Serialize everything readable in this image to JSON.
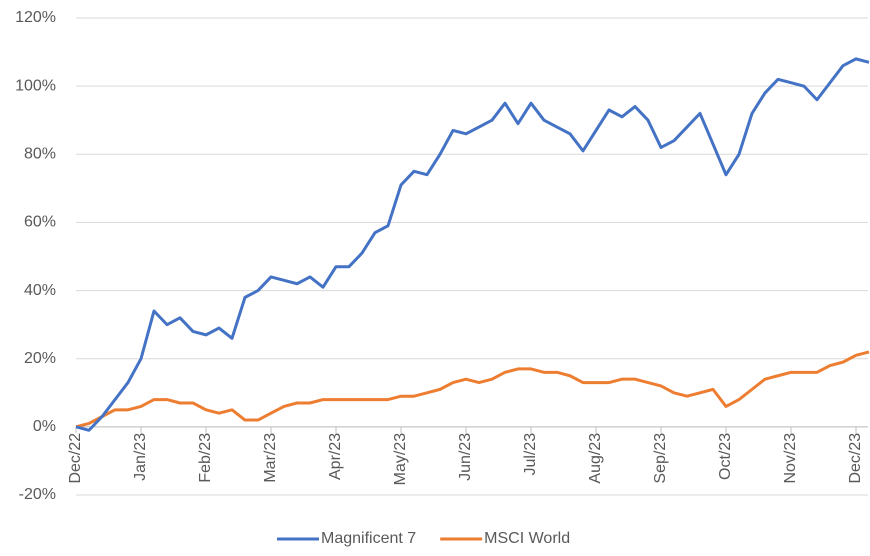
{
  "chart_data": {
    "type": "line",
    "categories": [
      "Dec/22",
      null,
      null,
      null,
      null,
      "Jan/23",
      null,
      null,
      null,
      null,
      "Feb/23",
      null,
      null,
      null,
      null,
      "Mar/23",
      null,
      null,
      null,
      null,
      "Apr/23",
      null,
      null,
      null,
      null,
      "May/23",
      null,
      null,
      null,
      null,
      "Jun/23",
      null,
      null,
      null,
      null,
      "Jul/23",
      null,
      null,
      null,
      null,
      "Aug/23",
      null,
      null,
      null,
      null,
      "Sep/23",
      null,
      null,
      null,
      null,
      "Oct/23",
      null,
      null,
      null,
      null,
      "Nov/23",
      null,
      null,
      null,
      null,
      "Dec/23",
      null
    ],
    "series": [
      {
        "name": "Magnificent 7",
        "color": "#4472c4",
        "values": [
          0,
          -1,
          3,
          8,
          13,
          20,
          34,
          30,
          32,
          28,
          27,
          29,
          26,
          38,
          40,
          44,
          43,
          42,
          44,
          41,
          47,
          47,
          51,
          57,
          59,
          71,
          75,
          74,
          80,
          87,
          86,
          88,
          90,
          95,
          89,
          95,
          90,
          88,
          86,
          81,
          87,
          93,
          91,
          94,
          90,
          82,
          84,
          88,
          92,
          83,
          74,
          80,
          92,
          98,
          102,
          101,
          100,
          96,
          101,
          106,
          108,
          107
        ]
      },
      {
        "name": "MSCI World",
        "color": "#ed7d31",
        "values": [
          0,
          1,
          3,
          5,
          5,
          6,
          8,
          8,
          7,
          7,
          5,
          4,
          5,
          2,
          2,
          4,
          6,
          7,
          7,
          8,
          8,
          8,
          8,
          8,
          8,
          9,
          9,
          10,
          11,
          13,
          14,
          13,
          14,
          16,
          17,
          17,
          16,
          16,
          15,
          13,
          13,
          13,
          14,
          14,
          13,
          12,
          10,
          9,
          10,
          11,
          6,
          8,
          11,
          14,
          15,
          16,
          16,
          16,
          18,
          19,
          21,
          22
        ]
      }
    ],
    "ylim": [
      -20,
      120
    ],
    "yticks": [
      {
        "value": -20,
        "label": "-20%"
      },
      {
        "value": 0,
        "label": "0%"
      },
      {
        "value": 20,
        "label": "20%"
      },
      {
        "value": 40,
        "label": "40%"
      },
      {
        "value": 60,
        "label": "60%"
      },
      {
        "value": 80,
        "label": "80%"
      },
      {
        "value": 100,
        "label": "100%"
      },
      {
        "value": 120,
        "label": "120%"
      }
    ],
    "grid": true,
    "legend": "bottom"
  }
}
